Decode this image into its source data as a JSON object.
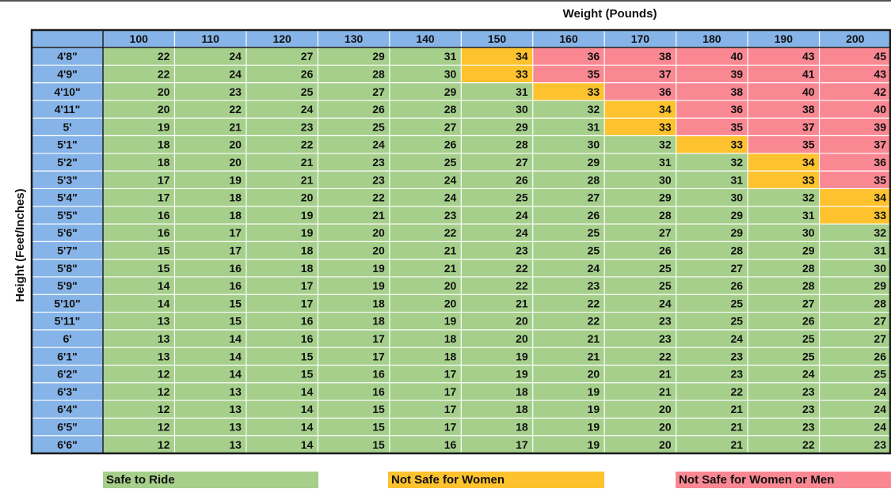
{
  "chart_data": {
    "type": "table",
    "xlabel": "Weight (Pounds)",
    "ylabel": "Height (Feet/Inches)",
    "columns": [
      "100",
      "110",
      "120",
      "130",
      "140",
      "150",
      "160",
      "170",
      "180",
      "190",
      "200"
    ],
    "rows": [
      "4'8\"",
      "4'9\"",
      "4'10\"",
      "4'11\"",
      "5'",
      "5'1\"",
      "5'2\"",
      "5'3\"",
      "5'4\"",
      "5'5\"",
      "5'6\"",
      "5'7\"",
      "5'8\"",
      "5'9\"",
      "5'10\"",
      "5'11\"",
      "6'",
      "6'1\"",
      "6'2\"",
      "6'3\"",
      "6'4\"",
      "6'5\"",
      "6'6\""
    ],
    "values": [
      [
        22,
        24,
        27,
        29,
        31,
        34,
        36,
        38,
        40,
        43,
        45
      ],
      [
        22,
        24,
        26,
        28,
        30,
        33,
        35,
        37,
        39,
        41,
        43
      ],
      [
        20,
        23,
        25,
        27,
        29,
        31,
        33,
        36,
        38,
        40,
        42
      ],
      [
        20,
        22,
        24,
        26,
        28,
        30,
        32,
        34,
        36,
        38,
        40
      ],
      [
        19,
        21,
        23,
        25,
        27,
        29,
        31,
        33,
        35,
        37,
        39
      ],
      [
        18,
        20,
        22,
        24,
        26,
        28,
        30,
        32,
        33,
        35,
        37
      ],
      [
        18,
        20,
        21,
        23,
        25,
        27,
        29,
        31,
        32,
        34,
        36
      ],
      [
        17,
        19,
        21,
        23,
        24,
        26,
        28,
        30,
        31,
        33,
        35
      ],
      [
        17,
        18,
        20,
        22,
        24,
        25,
        27,
        29,
        30,
        32,
        34
      ],
      [
        16,
        18,
        19,
        21,
        23,
        24,
        26,
        28,
        29,
        31,
        33
      ],
      [
        16,
        17,
        19,
        20,
        22,
        24,
        25,
        27,
        29,
        30,
        32
      ],
      [
        15,
        17,
        18,
        20,
        21,
        23,
        25,
        26,
        28,
        29,
        31
      ],
      [
        15,
        16,
        18,
        19,
        21,
        22,
        24,
        25,
        27,
        28,
        30
      ],
      [
        14,
        16,
        17,
        19,
        20,
        22,
        23,
        25,
        26,
        28,
        29
      ],
      [
        14,
        15,
        17,
        18,
        20,
        21,
        22,
        24,
        25,
        27,
        28
      ],
      [
        13,
        15,
        16,
        18,
        19,
        20,
        22,
        23,
        25,
        26,
        27
      ],
      [
        13,
        14,
        16,
        17,
        18,
        20,
        21,
        23,
        24,
        25,
        27
      ],
      [
        13,
        14,
        15,
        17,
        18,
        19,
        21,
        22,
        23,
        25,
        26
      ],
      [
        12,
        14,
        15,
        16,
        17,
        19,
        20,
        21,
        23,
        24,
        25
      ],
      [
        12,
        13,
        14,
        16,
        17,
        18,
        19,
        21,
        22,
        23,
        24
      ],
      [
        12,
        13,
        14,
        15,
        17,
        18,
        19,
        20,
        21,
        23,
        24
      ],
      [
        12,
        13,
        14,
        15,
        17,
        18,
        19,
        20,
        21,
        23,
        24
      ],
      [
        12,
        13,
        14,
        15,
        16,
        17,
        19,
        20,
        21,
        22,
        23
      ]
    ],
    "categories": [
      [
        "S",
        "S",
        "S",
        "S",
        "S",
        "W",
        "M",
        "M",
        "M",
        "M",
        "M"
      ],
      [
        "S",
        "S",
        "S",
        "S",
        "S",
        "W",
        "M",
        "M",
        "M",
        "M",
        "M"
      ],
      [
        "S",
        "S",
        "S",
        "S",
        "S",
        "S",
        "W",
        "M",
        "M",
        "M",
        "M"
      ],
      [
        "S",
        "S",
        "S",
        "S",
        "S",
        "S",
        "S",
        "W",
        "M",
        "M",
        "M"
      ],
      [
        "S",
        "S",
        "S",
        "S",
        "S",
        "S",
        "S",
        "W",
        "M",
        "M",
        "M"
      ],
      [
        "S",
        "S",
        "S",
        "S",
        "S",
        "S",
        "S",
        "S",
        "W",
        "M",
        "M"
      ],
      [
        "S",
        "S",
        "S",
        "S",
        "S",
        "S",
        "S",
        "S",
        "S",
        "W",
        "M"
      ],
      [
        "S",
        "S",
        "S",
        "S",
        "S",
        "S",
        "S",
        "S",
        "S",
        "W",
        "M"
      ],
      [
        "S",
        "S",
        "S",
        "S",
        "S",
        "S",
        "S",
        "S",
        "S",
        "S",
        "W"
      ],
      [
        "S",
        "S",
        "S",
        "S",
        "S",
        "S",
        "S",
        "S",
        "S",
        "S",
        "W"
      ],
      [
        "S",
        "S",
        "S",
        "S",
        "S",
        "S",
        "S",
        "S",
        "S",
        "S",
        "S"
      ],
      [
        "S",
        "S",
        "S",
        "S",
        "S",
        "S",
        "S",
        "S",
        "S",
        "S",
        "S"
      ],
      [
        "S",
        "S",
        "S",
        "S",
        "S",
        "S",
        "S",
        "S",
        "S",
        "S",
        "S"
      ],
      [
        "S",
        "S",
        "S",
        "S",
        "S",
        "S",
        "S",
        "S",
        "S",
        "S",
        "S"
      ],
      [
        "S",
        "S",
        "S",
        "S",
        "S",
        "S",
        "S",
        "S",
        "S",
        "S",
        "S"
      ],
      [
        "S",
        "S",
        "S",
        "S",
        "S",
        "S",
        "S",
        "S",
        "S",
        "S",
        "S"
      ],
      [
        "S",
        "S",
        "S",
        "S",
        "S",
        "S",
        "S",
        "S",
        "S",
        "S",
        "S"
      ],
      [
        "S",
        "S",
        "S",
        "S",
        "S",
        "S",
        "S",
        "S",
        "S",
        "S",
        "S"
      ],
      [
        "S",
        "S",
        "S",
        "S",
        "S",
        "S",
        "S",
        "S",
        "S",
        "S",
        "S"
      ],
      [
        "S",
        "S",
        "S",
        "S",
        "S",
        "S",
        "S",
        "S",
        "S",
        "S",
        "S"
      ],
      [
        "S",
        "S",
        "S",
        "S",
        "S",
        "S",
        "S",
        "S",
        "S",
        "S",
        "S"
      ],
      [
        "S",
        "S",
        "S",
        "S",
        "S",
        "S",
        "S",
        "S",
        "S",
        "S",
        "S"
      ],
      [
        "S",
        "S",
        "S",
        "S",
        "S",
        "S",
        "S",
        "S",
        "S",
        "S",
        "S"
      ]
    ],
    "legend": [
      {
        "key": "S",
        "label": "Safe to Ride",
        "color": "#a6cf8c"
      },
      {
        "key": "W",
        "label": "Not Safe for Women",
        "color": "#fdc22e"
      },
      {
        "key": "M",
        "label": "Not Safe for Women or Men",
        "color": "#f98893"
      }
    ],
    "header_color": "#86b4e8",
    "grid_color": "#ffffff",
    "border_color": "#1a1a1a"
  }
}
